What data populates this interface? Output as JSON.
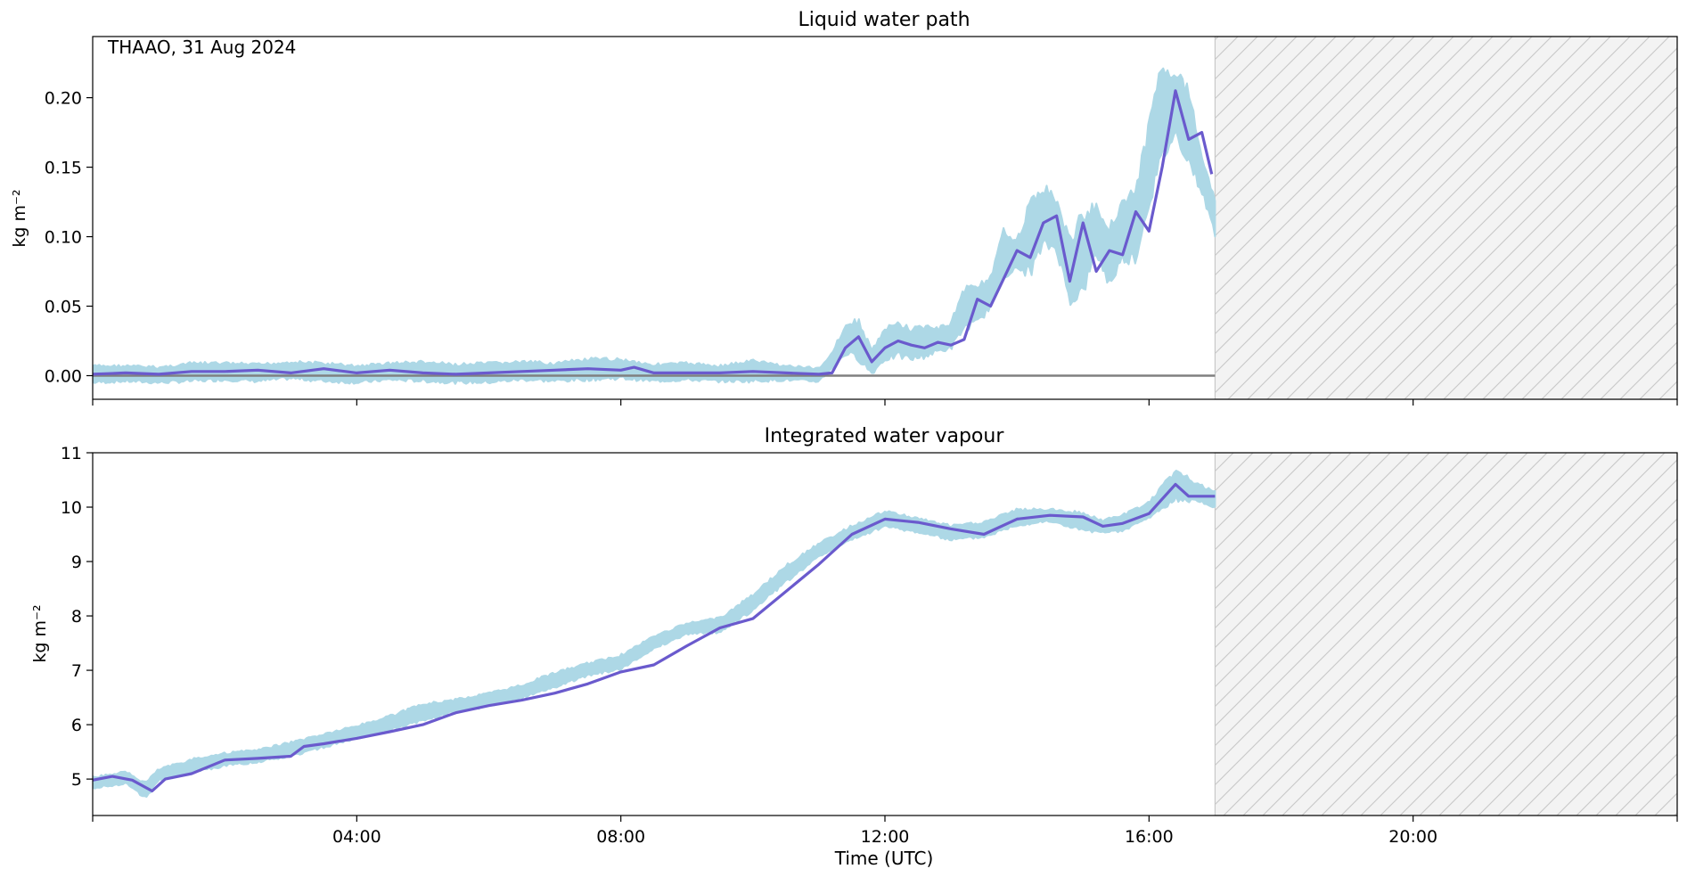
{
  "annotation": "THAAO, 31 Aug 2024",
  "colors": {
    "raw": "#add8e6",
    "smooth": "#6a5acd",
    "zero_line": "#808080",
    "hatch_fill": "#f3f3f3",
    "hatch_line": "#c8c8c8"
  },
  "chart_data": [
    {
      "type": "line",
      "title": "Liquid water path",
      "xlabel": "",
      "ylabel": "kg m⁻²",
      "xlim": [
        0,
        24
      ],
      "ylim": [
        -0.017,
        0.244
      ],
      "yticks": [
        0.0,
        0.05,
        0.1,
        0.15,
        0.2
      ],
      "ytick_labels": [
        "0.00",
        "0.05",
        "0.10",
        "0.15",
        "0.20"
      ],
      "xticks": [
        4,
        8,
        12,
        16,
        20
      ],
      "xtick_labels": [
        "",
        "",
        "",
        "",
        ""
      ],
      "no_data_from": 17.0,
      "zero_line": true,
      "series": [
        {
          "kind": "raw",
          "x": [
            0,
            0.5,
            1,
            1.5,
            2,
            2.5,
            3,
            3.5,
            4,
            4.5,
            5,
            5.5,
            6,
            6.5,
            7,
            7.5,
            8,
            8.5,
            9,
            9.5,
            10,
            10.5,
            11,
            11.2,
            11.4,
            11.6,
            11.8,
            12,
            12.2,
            12.4,
            12.6,
            12.8,
            13,
            13.2,
            13.4,
            13.6,
            13.8,
            14,
            14.2,
            14.4,
            14.6,
            14.8,
            15,
            15.2,
            15.4,
            15.6,
            15.8,
            16,
            16.2,
            16.4,
            16.6,
            16.8,
            17
          ],
          "low": [
            -0.006,
            -0.005,
            -0.006,
            -0.005,
            -0.004,
            -0.005,
            -0.003,
            -0.005,
            -0.006,
            -0.004,
            -0.005,
            -0.006,
            -0.006,
            -0.004,
            -0.005,
            -0.004,
            -0.003,
            -0.005,
            -0.004,
            -0.005,
            -0.005,
            -0.004,
            -0.005,
            0.005,
            0.014,
            0.01,
            0.0,
            0.01,
            0.012,
            0.01,
            0.012,
            0.016,
            0.018,
            0.032,
            0.035,
            0.048,
            0.07,
            0.074,
            0.07,
            0.09,
            0.088,
            0.05,
            0.055,
            0.085,
            0.062,
            0.08,
            0.08,
            0.12,
            0.15,
            0.17,
            0.15,
            0.13,
            0.1
          ],
          "high": [
            0.008,
            0.008,
            0.007,
            0.01,
            0.01,
            0.009,
            0.011,
            0.01,
            0.008,
            0.01,
            0.011,
            0.009,
            0.01,
            0.011,
            0.01,
            0.013,
            0.013,
            0.009,
            0.01,
            0.008,
            0.012,
            0.008,
            0.006,
            0.018,
            0.038,
            0.042,
            0.02,
            0.035,
            0.04,
            0.035,
            0.038,
            0.035,
            0.04,
            0.065,
            0.068,
            0.072,
            0.107,
            0.1,
            0.128,
            0.14,
            0.13,
            0.1,
            0.122,
            0.125,
            0.11,
            0.13,
            0.138,
            0.185,
            0.232,
            0.222,
            0.21,
            0.16,
            0.13
          ]
        },
        {
          "kind": "smooth",
          "x": [
            0,
            0.5,
            1,
            1.5,
            2,
            2.5,
            3,
            3.5,
            4,
            4.5,
            5,
            5.5,
            6,
            6.5,
            7,
            7.5,
            8,
            8.2,
            8.5,
            9,
            9.5,
            10,
            10.5,
            11,
            11.2,
            11.4,
            11.6,
            11.8,
            12,
            12.2,
            12.4,
            12.6,
            12.8,
            13,
            13.2,
            13.4,
            13.6,
            13.8,
            14,
            14.2,
            14.4,
            14.6,
            14.8,
            15,
            15.2,
            15.4,
            15.6,
            15.8,
            16,
            16.2,
            16.4,
            16.6,
            16.8,
            16.95
          ],
          "y": [
            0.001,
            0.002,
            0.001,
            0.003,
            0.003,
            0.004,
            0.002,
            0.005,
            0.002,
            0.004,
            0.002,
            0.001,
            0.002,
            0.003,
            0.004,
            0.005,
            0.004,
            0.006,
            0.002,
            0.002,
            0.002,
            0.003,
            0.002,
            0.001,
            0.002,
            0.02,
            0.028,
            0.01,
            0.02,
            0.025,
            0.022,
            0.02,
            0.024,
            0.022,
            0.026,
            0.055,
            0.05,
            0.07,
            0.09,
            0.085,
            0.11,
            0.115,
            0.068,
            0.11,
            0.075,
            0.09,
            0.087,
            0.118,
            0.104,
            0.15,
            0.205,
            0.17,
            0.175,
            0.145
          ]
        }
      ]
    },
    {
      "type": "line",
      "title": "Integrated water vapour",
      "xlabel": "Time (UTC)",
      "ylabel": "kg m⁻²",
      "xlim": [
        0,
        24
      ],
      "ylim": [
        4.33,
        11.0
      ],
      "yticks": [
        5,
        6,
        7,
        8,
        9,
        10,
        11
      ],
      "ytick_labels": [
        "5",
        "6",
        "7",
        "8",
        "9",
        "10",
        "11"
      ],
      "xticks": [
        4,
        8,
        12,
        16,
        20
      ],
      "xtick_labels": [
        "04:00",
        "08:00",
        "12:00",
        "16:00",
        "20:00"
      ],
      "no_data_from": 17.0,
      "zero_line": false,
      "series": [
        {
          "kind": "raw",
          "x": [
            0,
            0.5,
            0.8,
            1,
            1.5,
            2,
            2.5,
            3,
            3.5,
            4,
            4.5,
            5,
            5.5,
            6,
            6.5,
            7,
            7.5,
            8,
            8.5,
            9,
            9.5,
            10,
            10.5,
            11,
            11.5,
            12,
            12.5,
            13,
            13.5,
            14,
            14.5,
            15,
            15.3,
            15.6,
            16,
            16.4,
            16.8,
            17
          ],
          "low": [
            4.82,
            4.9,
            4.62,
            4.95,
            5.1,
            5.22,
            5.3,
            5.4,
            5.57,
            5.72,
            5.88,
            6.05,
            6.22,
            6.32,
            6.47,
            6.67,
            6.88,
            7.0,
            7.38,
            7.65,
            7.68,
            8.08,
            8.6,
            9.07,
            9.38,
            9.62,
            9.52,
            9.38,
            9.43,
            9.65,
            9.72,
            9.55,
            9.5,
            9.54,
            9.78,
            10.1,
            10.05,
            9.95
          ],
          "high": [
            5.05,
            5.15,
            4.96,
            5.2,
            5.38,
            5.5,
            5.55,
            5.7,
            5.85,
            6.0,
            6.18,
            6.4,
            6.48,
            6.6,
            6.75,
            6.98,
            7.15,
            7.3,
            7.65,
            7.88,
            7.98,
            8.42,
            8.95,
            9.35,
            9.68,
            9.95,
            9.82,
            9.68,
            9.75,
            9.98,
            9.98,
            9.92,
            9.78,
            9.88,
            10.12,
            10.72,
            10.42,
            10.3
          ]
        },
        {
          "kind": "smooth",
          "x": [
            0,
            0.3,
            0.6,
            0.9,
            1.1,
            1.5,
            2,
            2.5,
            3,
            3.2,
            3.5,
            4,
            4.5,
            5,
            5.5,
            6,
            6.5,
            7,
            7.5,
            8,
            8.5,
            9,
            9.5,
            10,
            10.5,
            11,
            11.5,
            12,
            12.5,
            13,
            13.5,
            14,
            14.5,
            15,
            15.3,
            15.6,
            16,
            16.4,
            16.6,
            17
          ],
          "y": [
            4.98,
            5.05,
            4.98,
            4.78,
            5.0,
            5.1,
            5.35,
            5.38,
            5.42,
            5.6,
            5.65,
            5.75,
            5.87,
            6.0,
            6.22,
            6.35,
            6.45,
            6.58,
            6.75,
            6.97,
            7.1,
            7.45,
            7.78,
            7.95,
            8.45,
            8.95,
            9.5,
            9.78,
            9.72,
            9.6,
            9.5,
            9.78,
            9.85,
            9.82,
            9.65,
            9.7,
            9.88,
            10.42,
            10.2,
            10.2
          ]
        }
      ]
    }
  ]
}
